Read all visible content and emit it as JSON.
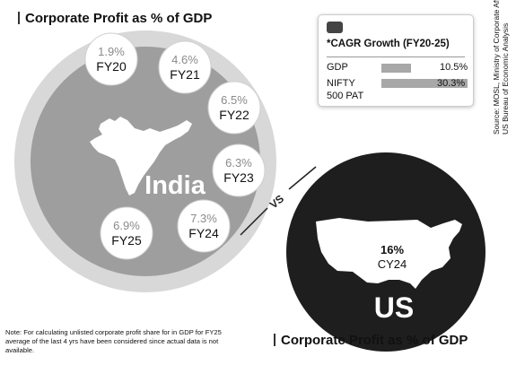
{
  "titles": {
    "top": "Corporate Profit as % of GDP",
    "bottom": "Corporate Profit as % of GDP"
  },
  "chart_data": [
    {
      "type": "bubble",
      "title": "Corporate Profit as % of GDP",
      "entity": "India",
      "categories": [
        "FY20",
        "FY21",
        "FY22",
        "FY23",
        "FY24",
        "FY25"
      ],
      "values": [
        1.9,
        4.6,
        6.5,
        6.3,
        7.3,
        6.9
      ],
      "value_labels": [
        "1.9%",
        "4.6%",
        "6.5%",
        "6.3%",
        "7.3%",
        "6.9%"
      ]
    },
    {
      "type": "bubble",
      "title": "Corporate Profit as % of GDP",
      "entity": "US",
      "categories": [
        "CY24"
      ],
      "values": [
        16
      ],
      "value_labels": [
        "16%"
      ]
    },
    {
      "type": "bar",
      "title": "*CAGR Growth (FY20-25)",
      "categories": [
        "GDP",
        "NIFTY 500 PAT"
      ],
      "category_lines": [
        [
          "GDP"
        ],
        [
          "NIFTY",
          "500 PAT"
        ]
      ],
      "values": [
        10.5,
        30.3
      ],
      "value_labels": [
        "10.5%",
        "30.3%"
      ],
      "xlim": [
        0,
        30.3
      ]
    }
  ],
  "vs_label": "VS",
  "us_label": "US",
  "india_label": "India",
  "source": "Source: MOSL, Ministry of Corporate Affairs , US Bureau of Economic Analysis",
  "source_lines": [
    "Source: MOSL, Ministry of Corporate Affairs ,",
    "US Bureau of Economic Analysis"
  ],
  "note": "Note: For calculating unlisted corporate profit share for in GDP for FY25 average of the last 4 yrs have been considered since actual data is not available.",
  "colors": {
    "india_disc": "#9e9e9e",
    "india_ring": "#d8d8d8",
    "us_disc": "#1e1e1e",
    "bar": "#a8a8a8"
  },
  "icons": {
    "cagr": "bar-chart-icon",
    "india": "india-map-icon",
    "us": "usa-map-icon"
  }
}
